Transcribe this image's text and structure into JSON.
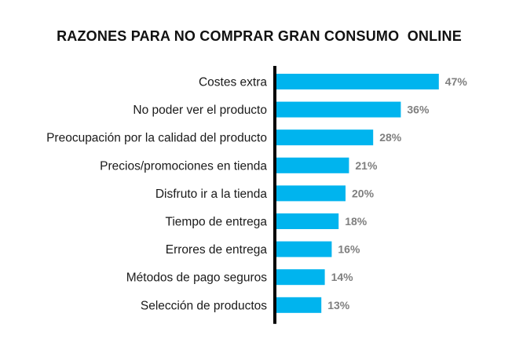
{
  "chart_data": {
    "type": "bar",
    "orientation": "horizontal",
    "title": "RAZONES PARA NO COMPRAR GRAN CONSUMO  ONLINE",
    "categories": [
      "Costes extra",
      "No poder ver el producto",
      "Preocupación por la calidad del producto",
      "Precios/promociones en tienda",
      "Disfruto ir a la tienda",
      "Tiempo de entrega",
      "Errores de entrega",
      "Métodos de pago seguros",
      "Selección de productos"
    ],
    "values": [
      47,
      36,
      28,
      21,
      20,
      18,
      16,
      14,
      13
    ],
    "value_labels": [
      "47%",
      "36%",
      "28%",
      "21%",
      "20%",
      "18%",
      "16%",
      "14%",
      "13%"
    ],
    "xlim": [
      0,
      50
    ],
    "xlabel": "",
    "ylabel": "",
    "grid": false,
    "colors": {
      "bar": "#00B4EE",
      "axis": "#000000",
      "value_label": "#7f7f7f"
    }
  }
}
